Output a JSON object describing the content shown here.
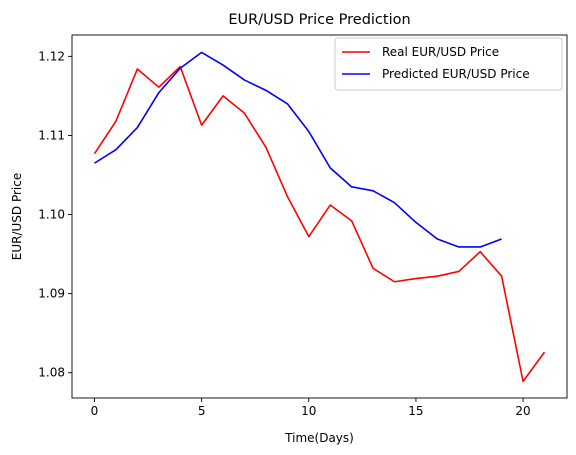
{
  "chart_data": {
    "type": "line",
    "title": "EUR/USD Price Prediction",
    "xlabel": "Time(Days)",
    "ylabel": "EUR/USD Price",
    "xlim": [
      -1.05,
      22.05
    ],
    "ylim": [
      1.0768,
      1.1227
    ],
    "xticks": [
      0,
      5,
      10,
      15,
      20
    ],
    "xtick_labels": [
      "0",
      "5",
      "10",
      "15",
      "20"
    ],
    "yticks": [
      1.08,
      1.09,
      1.1,
      1.11,
      1.12
    ],
    "ytick_labels": [
      "1.08",
      "1.09",
      "1.10",
      "1.11",
      "1.12"
    ],
    "grid": false,
    "legend_position": "upper-right",
    "series": [
      {
        "name": "Real EUR/USD Price",
        "color": "#ff0000",
        "x": [
          0,
          1,
          2,
          3,
          4,
          5,
          6,
          7,
          8,
          9,
          10,
          11,
          12,
          13,
          14,
          15,
          16,
          17,
          18,
          19,
          20,
          21
        ],
        "y": [
          1.1077,
          1.1118,
          1.1184,
          1.1161,
          1.1187,
          1.1113,
          1.115,
          1.1128,
          1.1085,
          1.1023,
          1.0972,
          1.1012,
          1.0992,
          1.0932,
          1.0915,
          1.0919,
          1.0922,
          1.0928,
          1.0953,
          1.0922,
          1.0789,
          1.0826
        ]
      },
      {
        "name": "Predicted EUR/USD Price",
        "color": "#0000ff",
        "x": [
          0,
          1,
          2,
          3,
          4,
          5,
          6,
          7,
          8,
          9,
          10,
          11,
          12,
          13,
          14,
          15,
          16,
          17,
          18,
          19
        ],
        "y": [
          1.1065,
          1.1082,
          1.111,
          1.1154,
          1.1185,
          1.1205,
          1.1189,
          1.117,
          1.1157,
          1.114,
          1.1105,
          1.1059,
          1.1035,
          1.103,
          1.1015,
          1.099,
          1.0969,
          1.0959,
          1.0959,
          1.0969
        ]
      }
    ]
  }
}
